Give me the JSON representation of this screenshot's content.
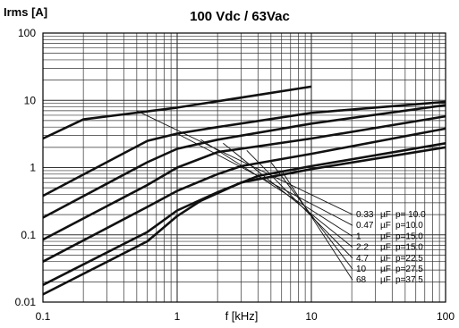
{
  "chart_data": {
    "type": "line",
    "title": "100 Vdc / 63Vac",
    "xlabel": "f [kHz]",
    "ylabel": "Irms [A]",
    "xscale": "log",
    "yscale": "log",
    "xlim": [
      0.1,
      100
    ],
    "ylim": [
      0.01,
      100
    ],
    "grid": true,
    "x_ticks": [
      "0.1",
      "1",
      "10",
      "100"
    ],
    "y_ticks": [
      "0.01",
      "0.1",
      "1",
      "10",
      "100"
    ],
    "legend_placement": "bottom-right",
    "series": [
      {
        "capacitance": "0.33",
        "unit": "µF",
        "p_label": "p= 10.0",
        "x": [
          0.1,
          0.6,
          1.0,
          1.5,
          3,
          10,
          100
        ],
        "y": [
          0.013,
          0.08,
          0.19,
          0.32,
          0.6,
          0.95,
          2.0
        ]
      },
      {
        "capacitance": "0.47",
        "unit": "µF",
        "p_label": "p=10.0",
        "x": [
          0.1,
          0.6,
          1.0,
          2,
          4,
          10,
          100
        ],
        "y": [
          0.018,
          0.11,
          0.23,
          0.43,
          0.75,
          1.05,
          2.3
        ]
      },
      {
        "capacitance": "1",
        "unit": "µF",
        "p_label": "p=15.0",
        "x": [
          0.1,
          0.6,
          1.0,
          2,
          3,
          10,
          100
        ],
        "y": [
          0.04,
          0.26,
          0.45,
          0.8,
          1.05,
          1.6,
          3.8
        ]
      },
      {
        "capacitance": "2.2",
        "unit": "µF",
        "p_label": "p=15.0",
        "x": [
          0.1,
          0.6,
          1.0,
          2,
          10,
          100
        ],
        "y": [
          0.085,
          0.55,
          1.0,
          1.7,
          2.7,
          5.8
        ]
      },
      {
        "capacitance": "4.7",
        "unit": "µF",
        "p_label": "p=22.5",
        "x": [
          0.1,
          0.6,
          1.0,
          2,
          10,
          100
        ],
        "y": [
          0.18,
          1.2,
          1.9,
          2.6,
          4.5,
          8.5
        ]
      },
      {
        "capacitance": "10",
        "unit": "µF",
        "p_label": "p=27.5",
        "x": [
          0.1,
          0.6,
          1.0,
          2,
          10,
          100
        ],
        "y": [
          0.38,
          2.5,
          3.2,
          4.0,
          6.5,
          9.5
        ]
      },
      {
        "capacitance": "68",
        "unit": "µF",
        "p_label": "p=37.5",
        "x": [
          0.1,
          0.2,
          1,
          10
        ],
        "y": [
          2.7,
          5.2,
          7.8,
          16
        ]
      }
    ],
    "legend_leaders": [
      {
        "start": [
          0.5,
          7.0
        ]
      },
      {
        "start": [
          1.0,
          3.2
        ]
      },
      {
        "start": [
          1.5,
          2.6
        ]
      },
      {
        "start": [
          2.2,
          2.3
        ]
      },
      {
        "start": [
          3.3,
          1.8
        ]
      },
      {
        "start": [
          5.0,
          1.2
        ]
      },
      {
        "start": [
          6.0,
          0.9
        ]
      }
    ],
    "colors": {
      "lines": "#111111",
      "grid": "#333333",
      "background": "#ffffff"
    }
  }
}
